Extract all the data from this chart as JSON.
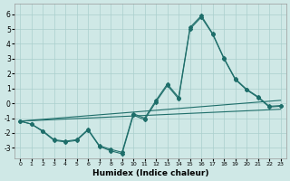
{
  "xlabel": "Humidex (Indice chaleur)",
  "xlim": [
    -0.5,
    23.5
  ],
  "ylim": [
    -3.7,
    6.7
  ],
  "xticks": [
    0,
    1,
    2,
    3,
    4,
    5,
    6,
    7,
    8,
    9,
    10,
    11,
    12,
    13,
    14,
    15,
    16,
    17,
    18,
    19,
    20,
    21,
    22,
    23
  ],
  "yticks": [
    -3,
    -2,
    -1,
    0,
    1,
    2,
    3,
    4,
    5,
    6
  ],
  "bg_color": "#cfe8e6",
  "grid_color": "#aacfcd",
  "line_color": "#1e6e6a",
  "line1_x": [
    0,
    1,
    2,
    3,
    4,
    5,
    6,
    7,
    8,
    9,
    10,
    11,
    12,
    13,
    14,
    15,
    16,
    17,
    18,
    19,
    20,
    21,
    22,
    23
  ],
  "line1_y": [
    -1.2,
    -1.4,
    -1.9,
    -2.5,
    -2.6,
    -2.5,
    -1.8,
    -2.9,
    -3.2,
    -3.4,
    -0.8,
    -1.1,
    0.1,
    1.2,
    0.3,
    5.0,
    5.8,
    4.65,
    3.0,
    1.6,
    0.9,
    0.4,
    -0.25,
    -0.2
  ],
  "line2_x": [
    0,
    23
  ],
  "line2_y": [
    -1.2,
    0.2
  ],
  "line3_x": [
    0,
    23
  ],
  "line3_y": [
    -1.2,
    -0.4
  ],
  "line4_x": [
    0,
    1,
    2,
    3,
    4,
    5,
    6,
    7,
    8,
    9,
    10,
    11,
    12,
    13,
    14,
    15,
    16,
    17,
    18,
    19,
    20,
    21,
    22,
    23
  ],
  "line4_y": [
    -1.2,
    -1.4,
    -1.85,
    -2.45,
    -2.55,
    -2.45,
    -1.75,
    -2.85,
    -3.1,
    -3.3,
    -0.7,
    -1.0,
    0.2,
    1.3,
    0.4,
    5.1,
    5.9,
    4.7,
    3.05,
    1.65,
    0.95,
    0.45,
    -0.2,
    -0.15
  ]
}
